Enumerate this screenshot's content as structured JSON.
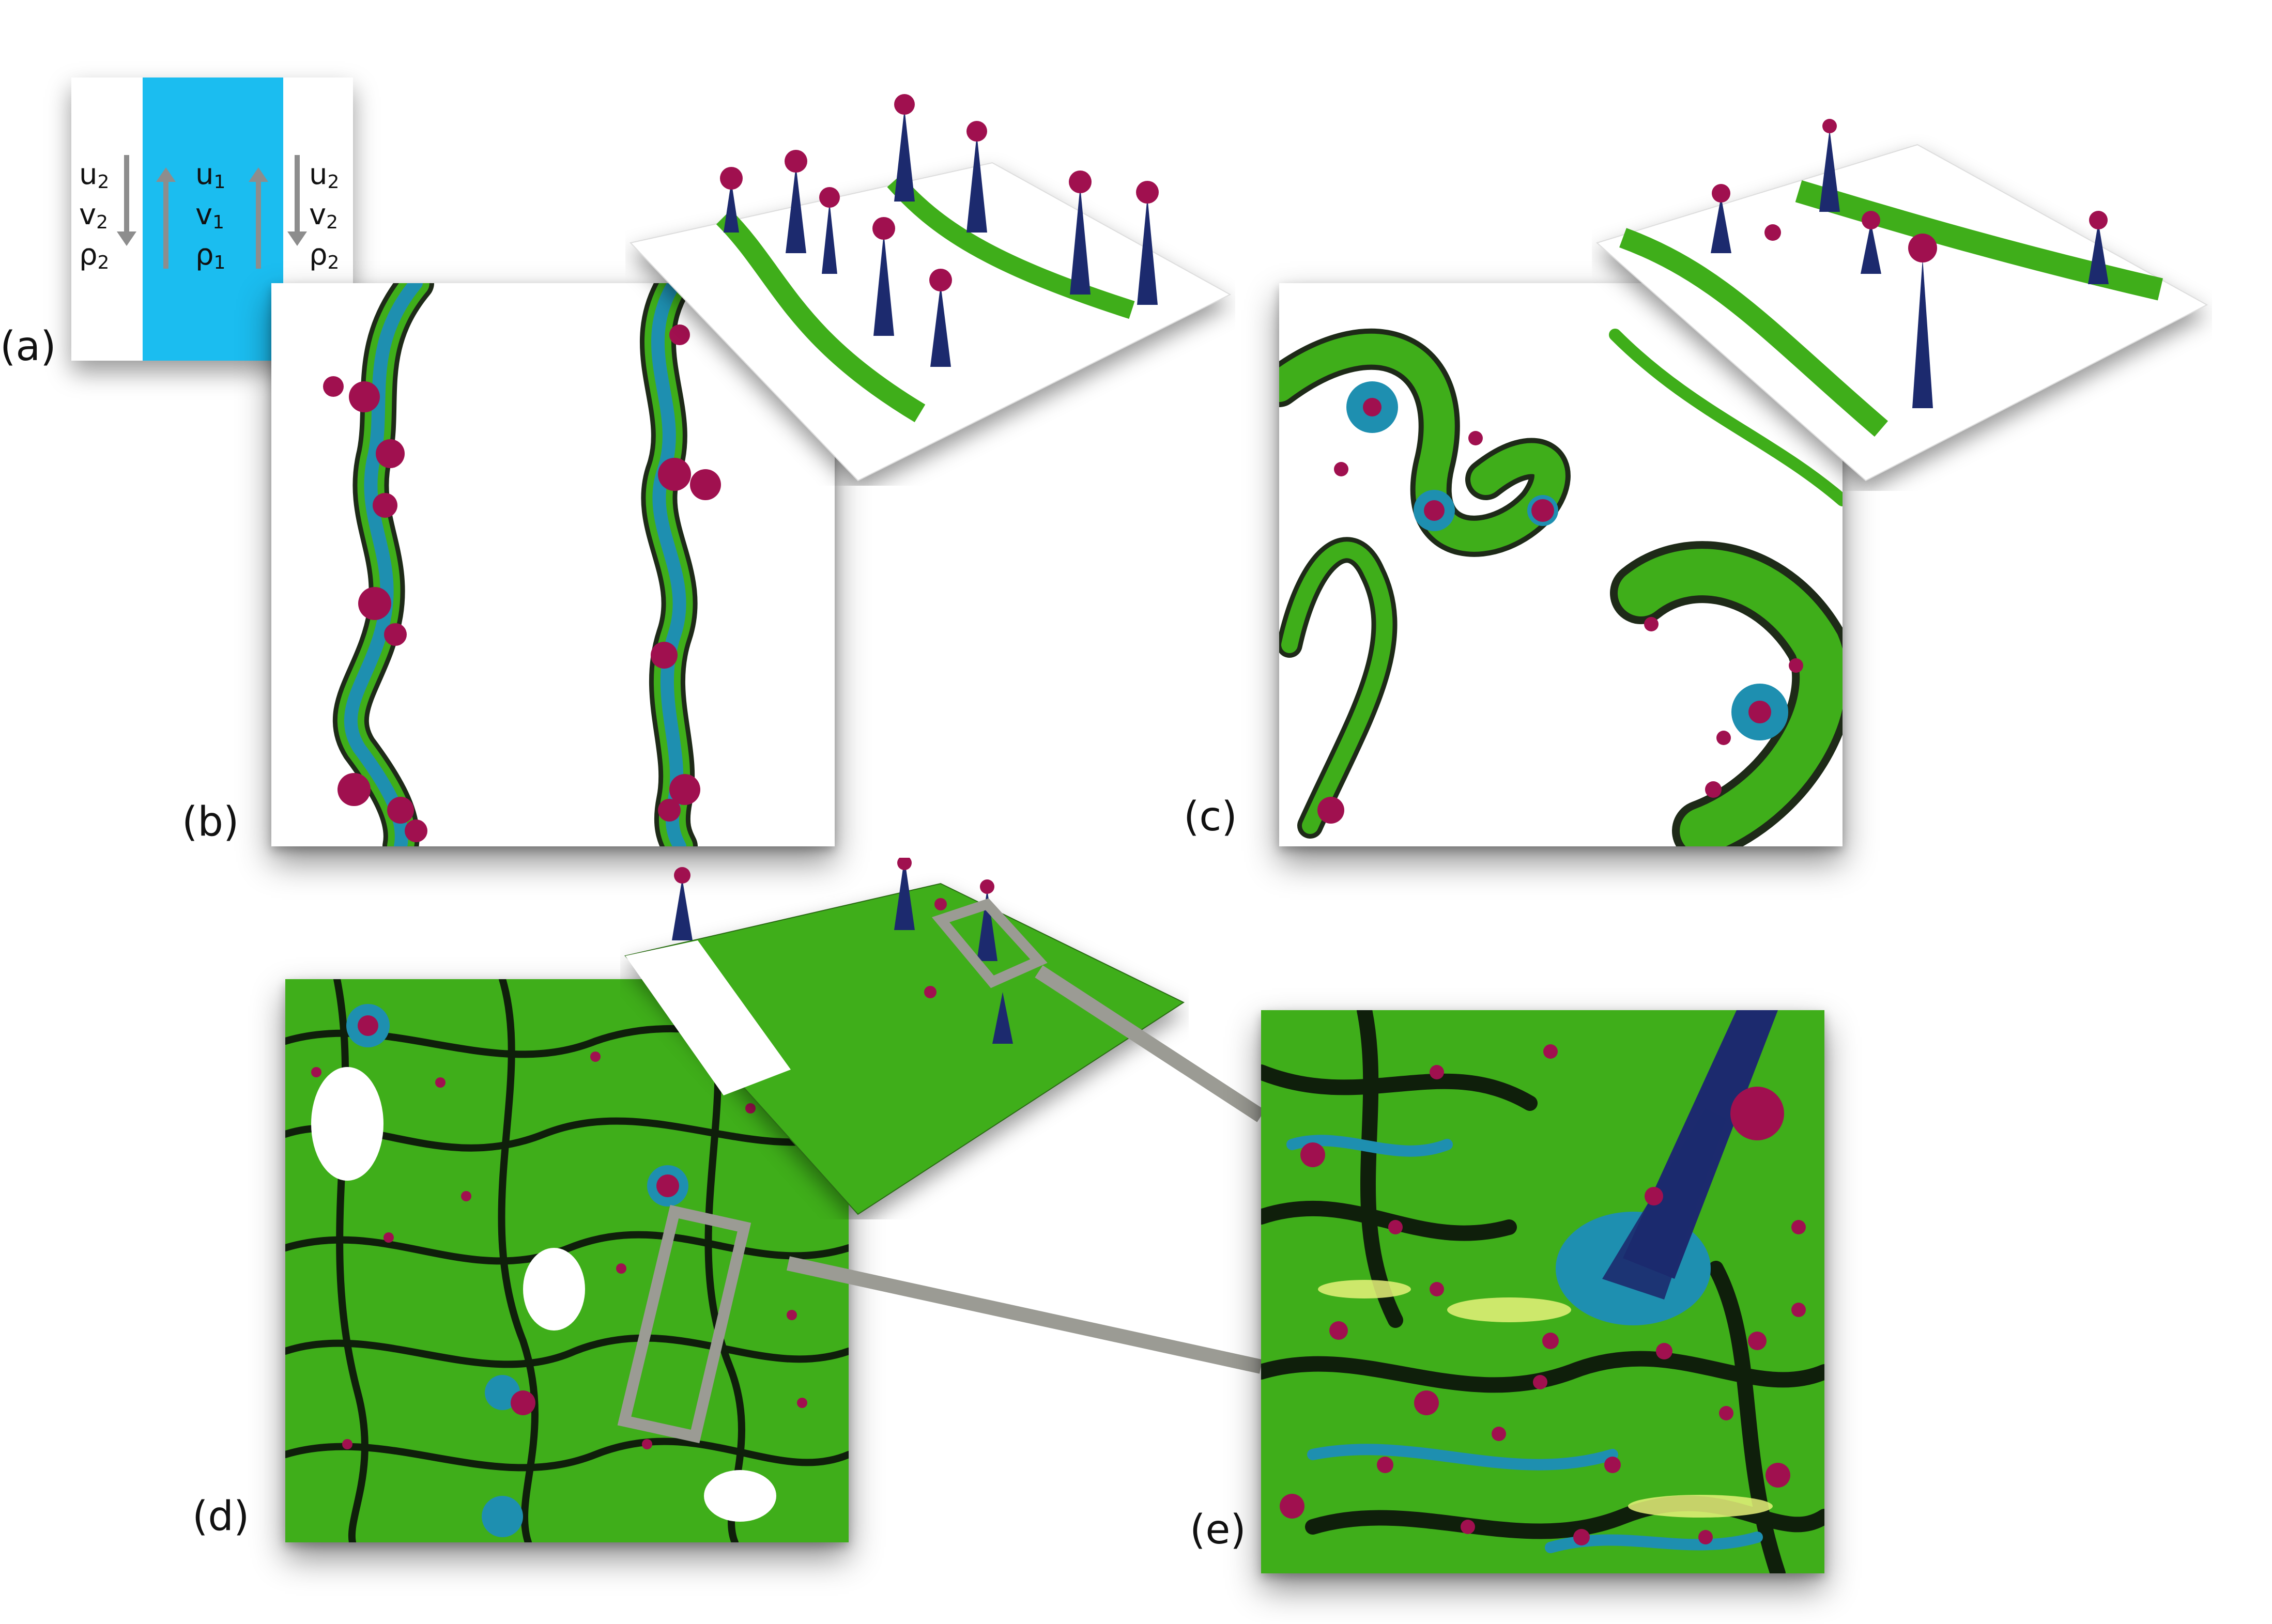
{
  "labels": {
    "a": "(a)",
    "b": "(b)",
    "c": "(c)",
    "d": "(d)",
    "e": "(e)"
  },
  "schematic": {
    "outer_left": [
      "u",
      "v",
      "ρ"
    ],
    "outer_left_sub": [
      "2",
      "2",
      "2"
    ],
    "inner": [
      "u",
      "v",
      "ρ"
    ],
    "inner_sub": [
      "1",
      "1",
      "1"
    ],
    "outer_right": [
      "u",
      "v",
      "ρ"
    ],
    "outer_right_sub": [
      "2",
      "2",
      "2"
    ],
    "colors": {
      "inner_layer": "#1bbdf0",
      "outer_layer": "#ffffff",
      "arrow": "#8d8d8d"
    }
  },
  "colors": {
    "sphere": "#a0104f",
    "spike": "#1c2a6e",
    "vortex": "#1e8fb0",
    "filament": "#3fae1a",
    "rim": "#d9e86a",
    "zoom_frame": "#9b9b94"
  }
}
